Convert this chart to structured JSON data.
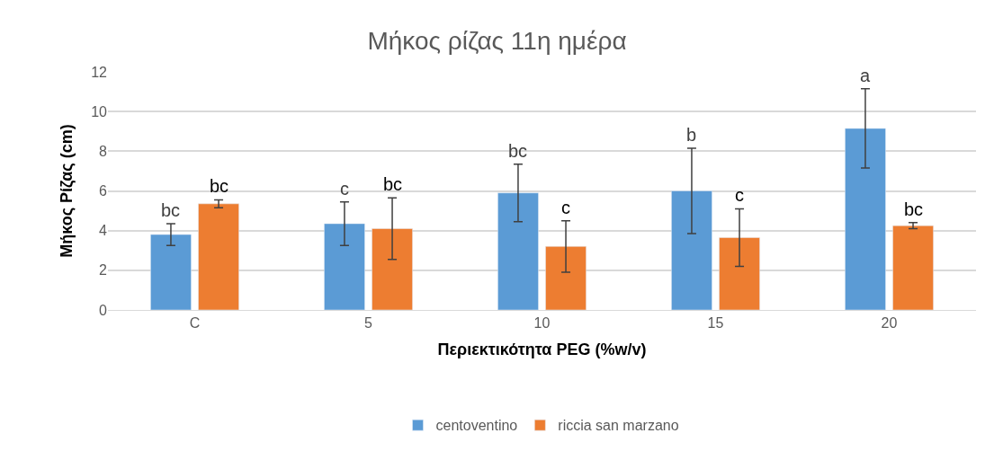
{
  "chart_data": {
    "type": "bar",
    "title": "Μήκος ρίζας 11η ημέρα",
    "xlabel": "Περιεκτικότητα PEG (%w/v)",
    "ylabel": "Μήκος Ρίζας (cm)",
    "categories": [
      "C",
      "5",
      "10",
      "15",
      "20"
    ],
    "series": [
      {
        "name": "centoventino",
        "color": "#5b9bd5",
        "values": [
          3.8,
          4.35,
          5.9,
          6.0,
          9.15
        ],
        "errors": [
          0.55,
          1.1,
          1.45,
          2.15,
          2.0
        ]
      },
      {
        "name": "riccia san marzano",
        "color": "#ed7d31",
        "values": [
          5.35,
          4.1,
          3.2,
          3.65,
          4.25
        ],
        "errors": [
          0.2,
          1.55,
          1.3,
          1.45,
          0.15
        ]
      }
    ],
    "annotations": [
      "bc",
      "bc",
      "c",
      "bc",
      "bc",
      "c",
      "b",
      "c",
      "a",
      "bc"
    ],
    "ylim": [
      0,
      12
    ],
    "yticks": [
      0,
      2,
      4,
      6,
      8,
      10,
      12
    ],
    "grid": "y",
    "legend": "bottom"
  }
}
